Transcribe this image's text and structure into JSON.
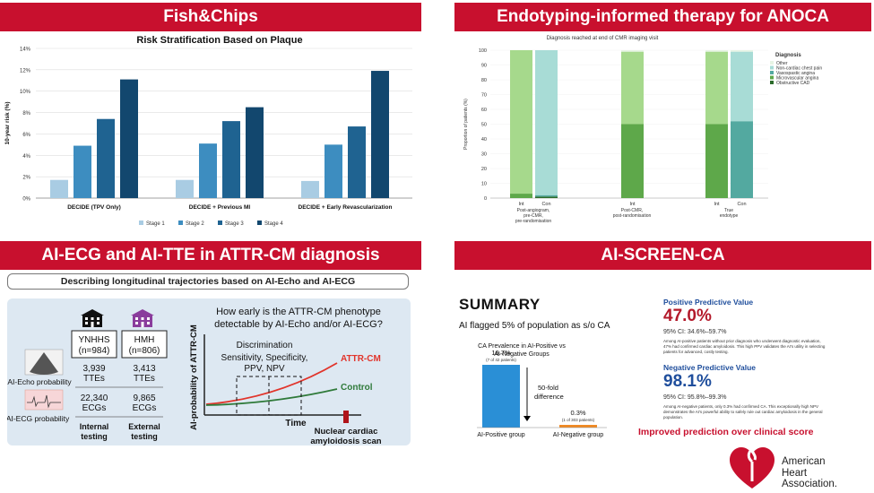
{
  "panels": {
    "tl_title": "Fish&Chips",
    "tr_title": "Endotyping-informed therapy for ANOCA",
    "bl_title": "AI-ECG and AI-TTE in ATTR-CM diagnosis",
    "br_title": "AI-SCREEN-CA"
  },
  "chart_data": [
    {
      "type": "bar",
      "title": "Risk Stratification Based on Plaque",
      "ylabel": "10-year risk (%)",
      "ylim": [
        0,
        14
      ],
      "yticks": [
        "0%",
        "2%",
        "4%",
        "6%",
        "8%",
        "10%",
        "12%",
        "14%"
      ],
      "categories": [
        "DECIDE (TPV Only)",
        "DECIDE + Previous MI",
        "DECIDE + Early Revascularization"
      ],
      "series": [
        {
          "name": "Stage 1",
          "values": [
            1.7,
            1.7,
            1.6
          ],
          "color": "#a9cce3"
        },
        {
          "name": "Stage 2",
          "values": [
            4.9,
            5.1,
            5.0
          ],
          "color": "#3d8dc0"
        },
        {
          "name": "Stage 3",
          "values": [
            7.4,
            7.2,
            6.7
          ],
          "color": "#1f6391"
        },
        {
          "name": "Stage 4",
          "values": [
            11.1,
            8.5,
            11.9
          ],
          "color": "#12476e"
        }
      ],
      "legend": "bottom",
      "grid": true
    },
    {
      "type": "bar",
      "title": "Diagnosis reached at end of CMR imaging visit",
      "ylabel": "Proportion of patients (%)",
      "ylim": [
        0,
        100
      ],
      "yticks": [
        "0",
        "10",
        "20",
        "30",
        "40",
        "50",
        "60",
        "70",
        "80",
        "90",
        "100"
      ],
      "stacked": true,
      "groups": [
        {
          "bars": [
            "Int",
            "Con"
          ],
          "label": [
            "Post-angiogram,",
            "pre-CMR,",
            "pre-randomisation"
          ]
        },
        {
          "bars": [
            "Int"
          ],
          "label": [
            "Post-CMR,",
            "post-randomisation"
          ]
        },
        {
          "bars": [
            "Int",
            "Con"
          ],
          "label": [
            "True",
            "endotype"
          ]
        }
      ],
      "bars": [
        {
          "label": "Int",
          "values": {
            "Obstructive CAD": 0,
            "Microvascular angina": 3,
            "Vasospastic angina": 0,
            "Non-cardiac chest pain": 0,
            "Other": 0,
            "Unclassified": 97
          }
        },
        {
          "label": "Con",
          "values": {
            "Obstructive CAD": 1,
            "Microvascular angina": 0,
            "Vasospastic angina": 1,
            "Non-cardiac chest pain": 98,
            "Other": 0
          }
        },
        {
          "label": "Int",
          "values": {
            "Obstructive CAD": 0,
            "Microvascular angina": 50,
            "Vasospastic angina": 0,
            "Non-cardiac chest pain": 0,
            "Unclassified": 49,
            "Other": 1
          }
        },
        {
          "label": "Int",
          "values": {
            "Obstructive CAD": 0,
            "Microvascular angina": 50,
            "Vasospastic angina": 0,
            "Non-cardiac chest pain": 0,
            "Unclassified": 49,
            "Other": 1
          }
        },
        {
          "label": "Con",
          "values": {
            "Obstructive CAD": 0,
            "Microvascular angina": 0,
            "Vasospastic angina": 52,
            "Non-cardiac chest pain": 47,
            "Other": 1
          }
        }
      ],
      "legend_title": "Diagnosis",
      "legend": [
        "Other",
        "Non-cardiac chest pain",
        "Vasospastic angina",
        "Microvascular angina",
        "Obstructive CAD"
      ],
      "legend_colors": [
        "#e6f4e4",
        "#a8dcd6",
        "#53a9a0",
        "#5ea84a",
        "#2b6b2a"
      ]
    },
    {
      "type": "bar",
      "title": "CA Prevalence in AI-Positive vs AI-Negative Groups",
      "categories": [
        "AI-Positive group",
        "AI-Negative group"
      ],
      "values": [
        16.7,
        0.3
      ],
      "value_labels": [
        "16.7%",
        "0.3%"
      ],
      "sub_labels": [
        "(7 of 42 patients)",
        "(1 of 303 patients)"
      ],
      "colors": [
        "#2a8fd6",
        "#f08a24"
      ],
      "annotation": [
        "50-fold",
        "difference"
      ]
    }
  ],
  "attr": {
    "subtitle": "Describing longitudinal trajectories based on AI-Echo and AI-ECG",
    "question": [
      "How early is the ATTR-CM phenotype",
      "detectable by AI-Echo and/or AI-ECG?"
    ],
    "ynhhs": "YNHHS",
    "ynhhs_n": "(n=984)",
    "hmh": "HMH",
    "hmh_n": "(n=806)",
    "ynhhs_ttes": [
      "3,939",
      "TTEs"
    ],
    "ynhhs_ecgs": [
      "22,340",
      "ECGs"
    ],
    "hmh_ttes": [
      "3,413",
      "TTEs"
    ],
    "hmh_ecgs": [
      "9,865",
      "ECGs"
    ],
    "internal": [
      "Internal",
      "testing"
    ],
    "external": [
      "External",
      "testing"
    ],
    "echo_prob": "AI-Echo probability",
    "ecg_prob": "AI-ECG probability",
    "y_axis": "AI-probability of ATTR-CM",
    "discrimination": "Discrimination",
    "metrics": [
      "Sensitivity, Specificity,",
      "PPV, NPV"
    ],
    "attr_label": "ATTR-CM",
    "control_label": "Control",
    "time": "Time",
    "scan": [
      "Nuclear cardiac",
      "amyloidosis scan"
    ]
  },
  "screen": {
    "summary": "SUMMARY",
    "flagged": "AI flagged 5% of population as s/o CA",
    "ppv_title": "Positive Predictive Value",
    "ppv_value": "47.0%",
    "ppv_ci": "95% CI: 34.6%–59.7%",
    "ppv_desc": [
      "Among AI-positive patients without prior diagnosis who underwent diagnostic evaluation,",
      "47% had confirmed cardiac amyloidosis. This high PPV validates the AI's utility in selecting",
      "patients for advanced, costly testing."
    ],
    "npv_title": "Negative Predictive Value",
    "npv_value": "98.1%",
    "npv_ci": "95% CI: 95.8%–99.3%",
    "npv_desc": [
      "Among AI-negative patients, only 0.3% had confirmed CA. This exceptionally high NPV",
      "demonstrates the AI's powerful ability to safely rule out cardiac amyloidosis in the general",
      "population."
    ],
    "improved": "Improved prediction over clinical score"
  },
  "aha": [
    "American",
    "Heart",
    "Association."
  ],
  "colors": {
    "banner": "#c8102e",
    "panel_bg": "#dde8f2",
    "navy": "#1f3864",
    "aha_red": "#c8102e"
  }
}
